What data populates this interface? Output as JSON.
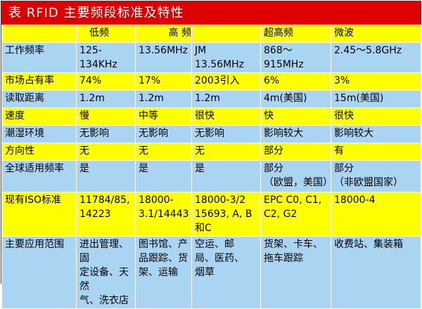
{
  "title": "表 RFID 主要频段标准及特性",
  "colors": {
    "title_bg": "#dc0000",
    "yellow_row": "#ffff00",
    "blue_row": "#a9d4f2"
  },
  "headers": [
    "",
    "低频",
    "高 频",
    "",
    "超高频",
    "微波"
  ],
  "rows": [
    {
      "style": "blue",
      "cells": [
        "工作频率",
        "125-134KHz",
        "13.56MHz",
        "JM 13.56MHz",
        "868～915MHz",
        "2.45～5.8GHz"
      ]
    },
    {
      "style": "yellow",
      "cells": [
        "市场占有率",
        "74%",
        "17%",
        "2003引入",
        "6%",
        "3%"
      ]
    },
    {
      "style": "blue",
      "cells": [
        "读取距离",
        "1.2m",
        "1.2m",
        "1.2m",
        "4m(美国)",
        "15m(美国)"
      ]
    },
    {
      "style": "yellow",
      "cells": [
        "速度",
        "慢",
        "中等",
        "很快",
        "快",
        "很快"
      ]
    },
    {
      "style": "blue",
      "cells": [
        "潮湿环境",
        "无影响",
        "无影响",
        "无影响",
        "影响较大",
        "影响较大"
      ]
    },
    {
      "style": "yellow",
      "cells": [
        "方向性",
        "无",
        "无",
        "无",
        "部分",
        "有"
      ]
    },
    {
      "style": "blue",
      "cells": [
        "全球适用频率",
        "是",
        "是",
        "是",
        "部分\n（欧盟，美国）",
        "部分\n（非欧盟国家）"
      ]
    },
    {
      "style": "yellow",
      "cells": [
        "现有ISO标准",
        "11784/85,\n14223",
        "18000-\n3.1/14443",
        "18000-3/2\n15693, A, B和C",
        "EPC C0, C1,\nC2, G2",
        "18000-4"
      ]
    },
    {
      "style": "blue",
      "cells": [
        "主要应用范围",
        "进出管理、固\n定设备、天然\n气、洗衣店",
        "图书馆、产\n品跟踪、货\n架、运输",
        "空运、邮\n局、医药、\n烟草",
        "货架、卡车、\n拖车跟踪",
        "收费站、集装箱"
      ]
    }
  ]
}
